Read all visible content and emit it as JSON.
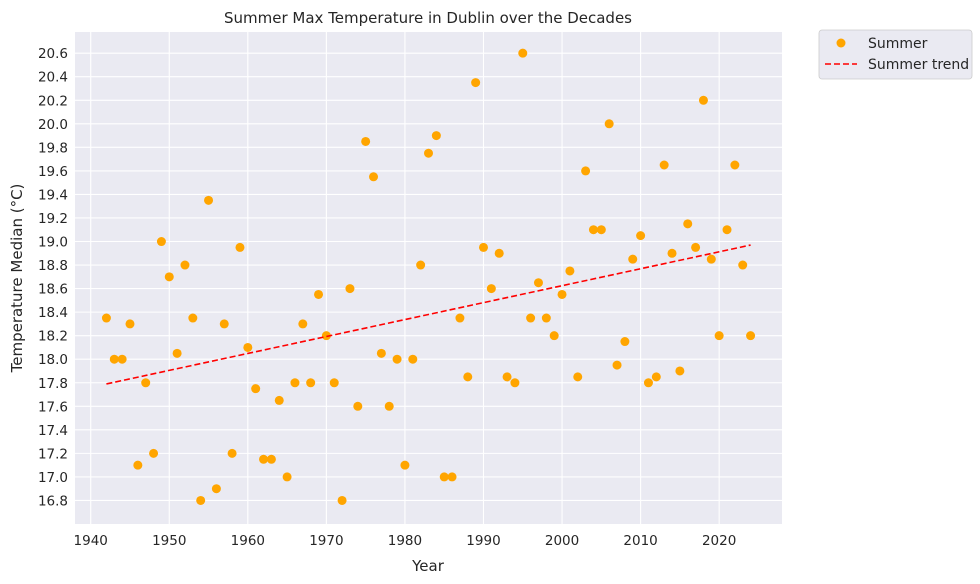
{
  "chart_data": {
    "type": "scatter",
    "title": "Summer Max Temperature in Dublin over the Decades",
    "xlabel": "Year",
    "ylabel": "Temperature Median (°C)",
    "xlim": [
      1938,
      2028
    ],
    "ylim": [
      16.6,
      20.78
    ],
    "xticks": [
      1940,
      1950,
      1960,
      1970,
      1980,
      1990,
      2000,
      2010,
      2020
    ],
    "yticks": [
      16.8,
      17.0,
      17.2,
      17.4,
      17.6,
      17.8,
      18.0,
      18.2,
      18.4,
      18.6,
      18.8,
      19.0,
      19.2,
      19.4,
      19.6,
      19.8,
      20.0,
      20.2,
      20.4,
      20.6
    ],
    "grid": true,
    "legend_position": "outside-top-right",
    "series": [
      {
        "name": "Summer",
        "kind": "scatter",
        "color": "#ffa500",
        "x": [
          1942,
          1943,
          1944,
          1945,
          1946,
          1947,
          1948,
          1949,
          1950,
          1951,
          1952,
          1953,
          1954,
          1955,
          1956,
          1957,
          1958,
          1959,
          1960,
          1961,
          1962,
          1963,
          1964,
          1965,
          1966,
          1967,
          1968,
          1969,
          1970,
          1971,
          1972,
          1973,
          1974,
          1975,
          1976,
          1977,
          1978,
          1979,
          1980,
          1981,
          1982,
          1983,
          1984,
          1985,
          1986,
          1987,
          1988,
          1989,
          1990,
          1991,
          1992,
          1993,
          1994,
          1995,
          1996,
          1997,
          1998,
          1999,
          2000,
          2001,
          2002,
          2003,
          2004,
          2005,
          2006,
          2007,
          2008,
          2009,
          2010,
          2011,
          2012,
          2013,
          2014,
          2015,
          2016,
          2017,
          2018,
          2019,
          2020,
          2021,
          2022,
          2023,
          2024
        ],
        "y": [
          18.35,
          18.0,
          18.0,
          18.3,
          17.1,
          17.8,
          17.2,
          19.0,
          18.7,
          18.05,
          18.8,
          18.35,
          16.8,
          19.35,
          16.9,
          18.3,
          17.2,
          18.95,
          18.1,
          17.75,
          17.15,
          17.15,
          17.65,
          17.0,
          17.8,
          18.3,
          17.8,
          18.55,
          18.2,
          17.8,
          16.8,
          18.6,
          17.6,
          19.85,
          19.55,
          18.05,
          17.6,
          18.0,
          17.1,
          18.0,
          18.8,
          19.75,
          19.9,
          17.0,
          17.0,
          18.35,
          17.85,
          20.35,
          18.95,
          18.6,
          18.9,
          17.85,
          17.8,
          20.6,
          18.35,
          18.65,
          18.35,
          18.2,
          18.55,
          18.75,
          17.85,
          19.6,
          19.1,
          19.1,
          20.0,
          17.95,
          18.15,
          18.85,
          19.05,
          17.8,
          17.85,
          19.65,
          18.9,
          17.9,
          19.15,
          18.95,
          20.2,
          18.85,
          18.2,
          19.1,
          19.65,
          18.8,
          18.2
        ]
      },
      {
        "name": "Summer trend",
        "kind": "line",
        "style": "dashed",
        "color": "#ff0000",
        "x": [
          1942,
          2024
        ],
        "y": [
          17.79,
          18.97
        ]
      }
    ]
  }
}
